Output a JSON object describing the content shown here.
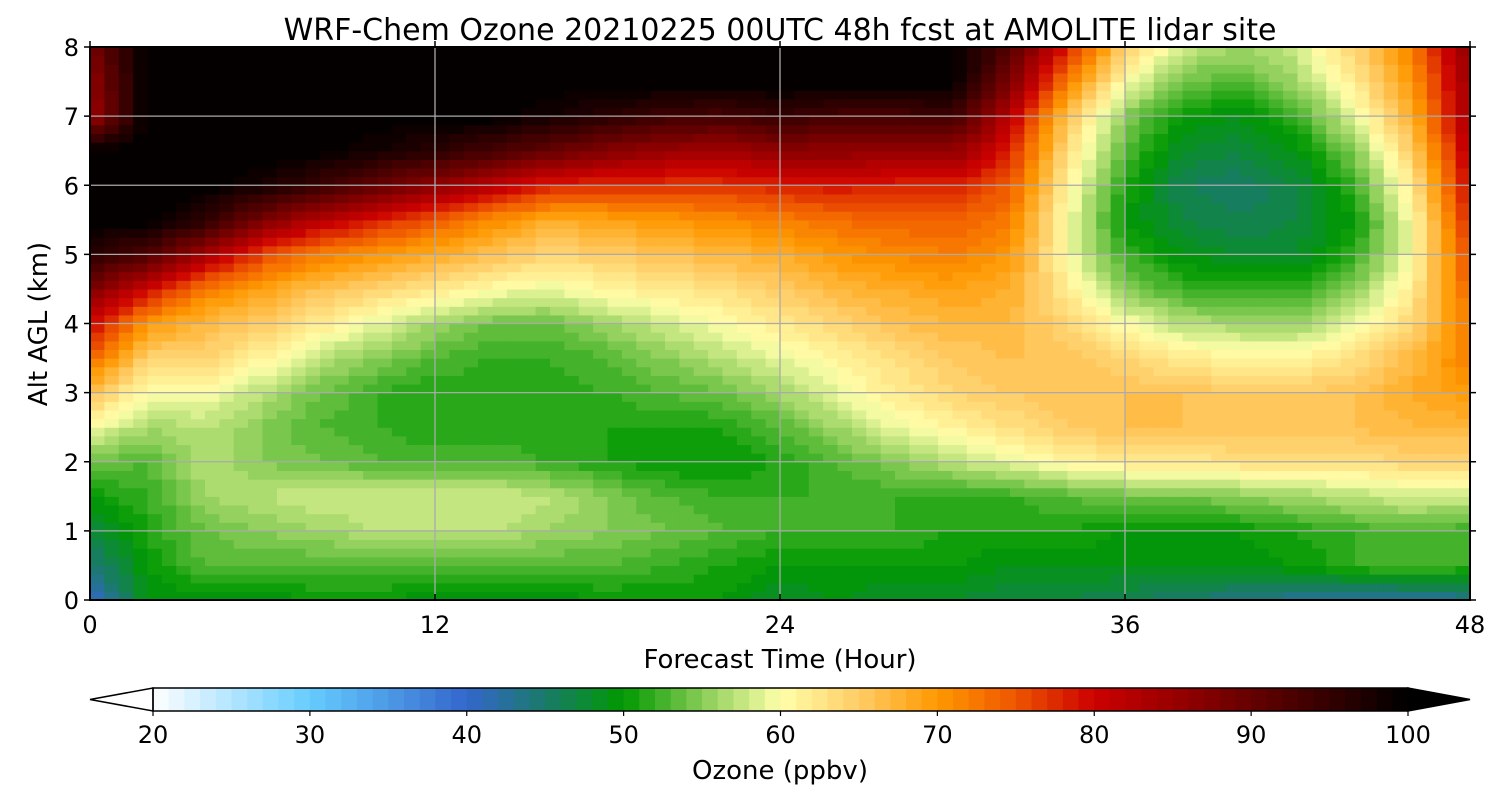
{
  "chart_data": {
    "type": "heatmap",
    "title": "WRF-Chem Ozone  20210225 00UTC 48h fcst at AMOLITE lidar site",
    "xlabel": "Forecast Time (Hour)",
    "ylabel": "Alt AGL (km)",
    "xlim": [
      0,
      48
    ],
    "ylim": [
      0,
      8
    ],
    "xticks": [
      "0",
      "12",
      "24",
      "36",
      "48"
    ],
    "yticks": [
      "0",
      "1",
      "2",
      "3",
      "4",
      "5",
      "6",
      "7",
      "8"
    ],
    "grid": true,
    "x_hours": [
      0,
      2,
      4,
      6,
      8,
      10,
      12,
      14,
      16,
      18,
      20,
      22,
      24,
      26,
      28,
      30,
      32,
      34,
      36,
      38,
      40,
      42,
      44,
      46,
      48
    ],
    "z_km": [
      0,
      0.5,
      1,
      1.5,
      2,
      2.5,
      3,
      3.5,
      4,
      4.5,
      5,
      5.5,
      6,
      6.5,
      7,
      7.5,
      8
    ],
    "ozone_ppbv_rows_by_altitude": [
      [
        40,
        49,
        49,
        49,
        50,
        50,
        49,
        49,
        49,
        50,
        50,
        50,
        48,
        49,
        48,
        48,
        47,
        47,
        46,
        45,
        44,
        43,
        42,
        42,
        43
      ],
      [
        44,
        50,
        53,
        53,
        53,
        53,
        53,
        53,
        53,
        53,
        52,
        51,
        50,
        50,
        50,
        50,
        49,
        49,
        49,
        49,
        49,
        50,
        52,
        53,
        52
      ],
      [
        47,
        51,
        54,
        55,
        56,
        57,
        57,
        57,
        56,
        55,
        54,
        53,
        52,
        52,
        52,
        51,
        51,
        51,
        50,
        50,
        50,
        51,
        52,
        53,
        52
      ],
      [
        50,
        52,
        56,
        57,
        58,
        58,
        58,
        58,
        57,
        55,
        53,
        52,
        52,
        52,
        52,
        52,
        52,
        53,
        54,
        54,
        55,
        56,
        57,
        58,
        58
      ],
      [
        54,
        53,
        57,
        55,
        54,
        53,
        53,
        53,
        52,
        51,
        50,
        50,
        51,
        53,
        55,
        57,
        59,
        61,
        62,
        62,
        63,
        63,
        63,
        64,
        64
      ],
      [
        60,
        56,
        57,
        55,
        53,
        52,
        51,
        51,
        51,
        51,
        51,
        51,
        53,
        56,
        59,
        61,
        63,
        65,
        66,
        66,
        66,
        66,
        66,
        67,
        67
      ],
      [
        66,
        60,
        60,
        57,
        54,
        52,
        51,
        51,
        51,
        52,
        53,
        54,
        56,
        59,
        62,
        64,
        65,
        66,
        66,
        66,
        65,
        65,
        66,
        68,
        70
      ],
      [
        74,
        64,
        64,
        61,
        57,
        55,
        53,
        52,
        52,
        53,
        55,
        57,
        59,
        61,
        63,
        65,
        66,
        66,
        64,
        62,
        61,
        61,
        63,
        67,
        72
      ],
      [
        80,
        70,
        67,
        65,
        62,
        59,
        56,
        54,
        54,
        56,
        58,
        60,
        62,
        64,
        66,
        67,
        67,
        64,
        60,
        57,
        56,
        56,
        59,
        64,
        72
      ],
      [
        88,
        80,
        72,
        69,
        66,
        64,
        62,
        60,
        59,
        61,
        62,
        63,
        65,
        67,
        68,
        69,
        68,
        62,
        55,
        52,
        52,
        52,
        55,
        62,
        74
      ],
      [
        96,
        92,
        84,
        76,
        72,
        70,
        68,
        66,
        64,
        65,
        66,
        67,
        68,
        70,
        71,
        72,
        70,
        60,
        52,
        49,
        48,
        48,
        52,
        60,
        76
      ],
      [
        100,
        100,
        96,
        88,
        82,
        78,
        75,
        71,
        68,
        69,
        70,
        71,
        72,
        73,
        74,
        74,
        72,
        60,
        50,
        47,
        46,
        47,
        50,
        60,
        78
      ],
      [
        100,
        100,
        100,
        98,
        94,
        90,
        86,
        82,
        78,
        77,
        77,
        77,
        78,
        79,
        78,
        78,
        75,
        61,
        51,
        46,
        45,
        47,
        52,
        62,
        80
      ],
      [
        100,
        100,
        100,
        100,
        100,
        98,
        96,
        93,
        90,
        87,
        85,
        84,
        86,
        86,
        85,
        86,
        78,
        63,
        53,
        48,
        47,
        49,
        55,
        65,
        82
      ],
      [
        84,
        100,
        100,
        100,
        100,
        100,
        100,
        100,
        98,
        96,
        94,
        93,
        95,
        93,
        93,
        94,
        82,
        66,
        55,
        50,
        49,
        52,
        59,
        68,
        84
      ],
      [
        86,
        100,
        100,
        100,
        100,
        100,
        100,
        100,
        100,
        100,
        100,
        100,
        100,
        100,
        100,
        100,
        88,
        72,
        60,
        54,
        53,
        56,
        62,
        70,
        85
      ],
      [
        88,
        100,
        100,
        100,
        100,
        100,
        100,
        100,
        100,
        100,
        100,
        100,
        100,
        100,
        100,
        100,
        92,
        78,
        65,
        58,
        56,
        58,
        64,
        72,
        86
      ]
    ]
  },
  "colorbar": {
    "label": "Ozone  (ppbv)",
    "min": 20,
    "max": 100,
    "step": 1,
    "ticks": [
      "20",
      "30",
      "40",
      "50",
      "60",
      "70",
      "80",
      "90",
      "100"
    ],
    "extend": "both",
    "color_stops": [
      {
        "v": 20,
        "c": "#ffffff"
      },
      {
        "v": 30,
        "c": "#66ccff"
      },
      {
        "v": 40,
        "c": "#3366cc"
      },
      {
        "v": 45,
        "c": "#1a7a6a"
      },
      {
        "v": 50,
        "c": "#009900"
      },
      {
        "v": 55,
        "c": "#88cc55"
      },
      {
        "v": 60,
        "c": "#ffffaa"
      },
      {
        "v": 65,
        "c": "#ffcc66"
      },
      {
        "v": 70,
        "c": "#ff9900"
      },
      {
        "v": 75,
        "c": "#ee5500"
      },
      {
        "v": 80,
        "c": "#cc0000"
      },
      {
        "v": 90,
        "c": "#660000"
      },
      {
        "v": 100,
        "c": "#000000"
      }
    ]
  }
}
